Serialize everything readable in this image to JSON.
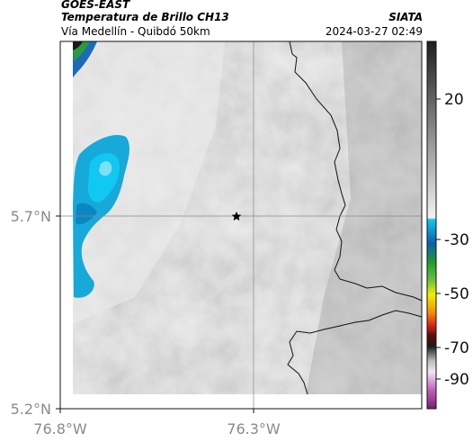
{
  "header": {
    "title": "GOES-EAST",
    "subtitle": "Temperatura de Brillo CH13",
    "location": "Vía Medellín - Quibdó 50km",
    "brand": "SIATA",
    "timestamp": "2024-03-27 02:49"
  },
  "map": {
    "lat_ticks": [
      "5.7°N",
      "5.2°N"
    ],
    "lon_ticks": [
      "76.8°W",
      "76.3°W"
    ],
    "marker": "star-marker"
  },
  "colorbar": {
    "tick_labels": [
      "20",
      "-30",
      "-50",
      "-70",
      "-90"
    ],
    "colors": {
      "dark_gray": "#2a2a2a",
      "cyan": "#00b7e3",
      "green": "#1a9b2b",
      "yellow": "#f2ef00",
      "red": "#e02a1a",
      "magenta": "#b23aa8"
    }
  }
}
